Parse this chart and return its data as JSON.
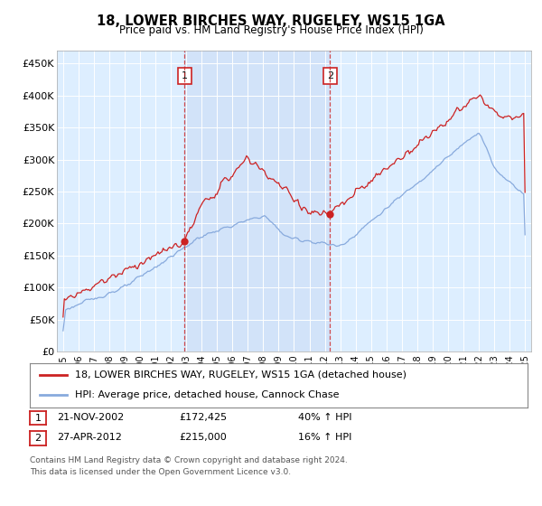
{
  "title": "18, LOWER BIRCHES WAY, RUGELEY, WS15 1GA",
  "subtitle": "Price paid vs. HM Land Registry's House Price Index (HPI)",
  "legend_line1": "18, LOWER BIRCHES WAY, RUGELEY, WS15 1GA (detached house)",
  "legend_line2": "HPI: Average price, detached house, Cannock Chase",
  "footnote": "Contains HM Land Registry data © Crown copyright and database right 2024.\nThis data is licensed under the Open Government Licence v3.0.",
  "sale1_date": "21-NOV-2002",
  "sale1_price": "£172,425",
  "sale1_hpi": "40% ↑ HPI",
  "sale2_date": "27-APR-2012",
  "sale2_price": "£215,000",
  "sale2_hpi": "16% ↑ HPI",
  "red_color": "#cc2222",
  "blue_color": "#88aadd",
  "bg_color": "#ddeeff",
  "shade_color": "#ccddf5",
  "yticks": [
    0,
    50000,
    100000,
    150000,
    200000,
    250000,
    300000,
    350000,
    400000,
    450000
  ],
  "sale1_x": 2002.9,
  "sale2_x": 2012.33
}
